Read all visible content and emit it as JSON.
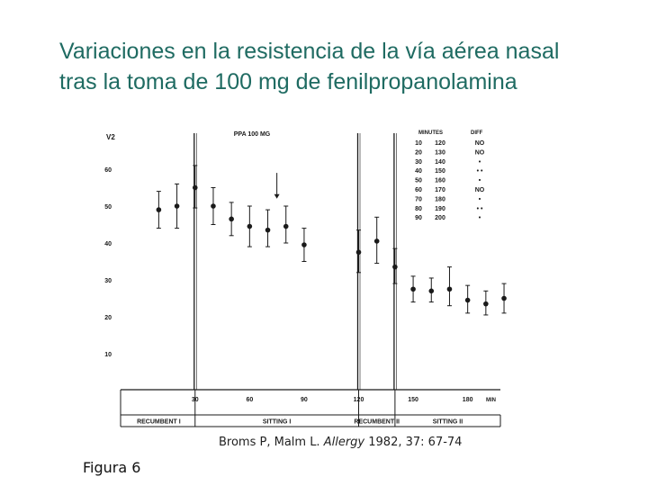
{
  "slide": {
    "title_line1": "Variaciones en la resistencia de la vía aérea nasal",
    "title_line2": "tras la toma de 100 mg de fenilpropanolamina",
    "citation_authors": "Broms P, Malm L.",
    "citation_journal": "Allergy",
    "citation_rest": "1982, 37: 67-74",
    "figure_label": "Figura 6",
    "title_color": "#1f6b62"
  },
  "chart_data": {
    "type": "scatter",
    "ylabel": "V2",
    "ylim": [
      0,
      70
    ],
    "yticks": [
      10,
      20,
      30,
      40,
      50,
      60
    ],
    "xlim": [
      0,
      200
    ],
    "xticks": [
      {
        "v": 30,
        "label": "30"
      },
      {
        "v": 60,
        "label": "60"
      },
      {
        "v": 90,
        "label": "90"
      },
      {
        "v": 120,
        "label": "120"
      },
      {
        "v": 150,
        "label": "150"
      },
      {
        "v": 180,
        "label": "180"
      }
    ],
    "xunit": "MIN",
    "series": [
      {
        "points": [
          {
            "x": 10,
            "y": 49,
            "lo": 44,
            "hi": 54
          },
          {
            "x": 20,
            "y": 50,
            "lo": 44,
            "hi": 56
          },
          {
            "x": 30,
            "y": 55,
            "lo": 49.5,
            "hi": 61
          },
          {
            "x": 40,
            "y": 50,
            "lo": 45,
            "hi": 55
          },
          {
            "x": 50,
            "y": 46.5,
            "lo": 42,
            "hi": 51
          },
          {
            "x": 60,
            "y": 44.5,
            "lo": 39,
            "hi": 50
          },
          {
            "x": 70,
            "y": 43.5,
            "lo": 39,
            "hi": 49
          },
          {
            "x": 80,
            "y": 44.5,
            "lo": 40,
            "hi": 50
          },
          {
            "x": 90,
            "y": 39.5,
            "lo": 35,
            "hi": 44
          },
          {
            "x": 120,
            "y": 37.5,
            "lo": 32,
            "hi": 43.5
          },
          {
            "x": 130,
            "y": 40.5,
            "lo": 34.5,
            "hi": 47
          },
          {
            "x": 140,
            "y": 33.5,
            "lo": 29,
            "hi": 38.5
          },
          {
            "x": 150,
            "y": 27.5,
            "lo": 24,
            "hi": 31
          },
          {
            "x": 160,
            "y": 27,
            "lo": 24,
            "hi": 30.5
          },
          {
            "x": 170,
            "y": 27.5,
            "lo": 23,
            "hi": 33.5
          },
          {
            "x": 180,
            "y": 24.5,
            "lo": 21,
            "hi": 28.5
          },
          {
            "x": 190,
            "y": 23.5,
            "lo": 20.5,
            "hi": 27
          },
          {
            "x": 200,
            "y": 25,
            "lo": 21,
            "hi": 29
          }
        ]
      }
    ],
    "dividers_x": [
      30,
      120,
      140
    ],
    "annotation": {
      "text": "PPA 100 MG",
      "arrow_x": 75,
      "arrow_y_top": 59,
      "arrow_y_bottom": 52
    },
    "phases": [
      {
        "label": "RECUMBENT  I",
        "x0": -10,
        "x1": 30
      },
      {
        "label": "SITTING  I",
        "x0": 30,
        "x1": 120
      },
      {
        "label": "RECUMBENT  II",
        "x0": 120,
        "x1": 140
      },
      {
        "label": "SITTING  II",
        "x0": 140,
        "x1": 208
      }
    ],
    "table": {
      "headers": [
        "MINUTES",
        "DIFF"
      ],
      "rows": [
        [
          "10",
          "120",
          "NO"
        ],
        [
          "20",
          "130",
          "NO"
        ],
        [
          "30",
          "140",
          "•"
        ],
        [
          "40",
          "150",
          "• •"
        ],
        [
          "50",
          "160",
          "•"
        ],
        [
          "60",
          "170",
          "NO"
        ],
        [
          "70",
          "180",
          "•"
        ],
        [
          "80",
          "190",
          "• •"
        ],
        [
          "90",
          "200",
          "•"
        ]
      ]
    }
  }
}
